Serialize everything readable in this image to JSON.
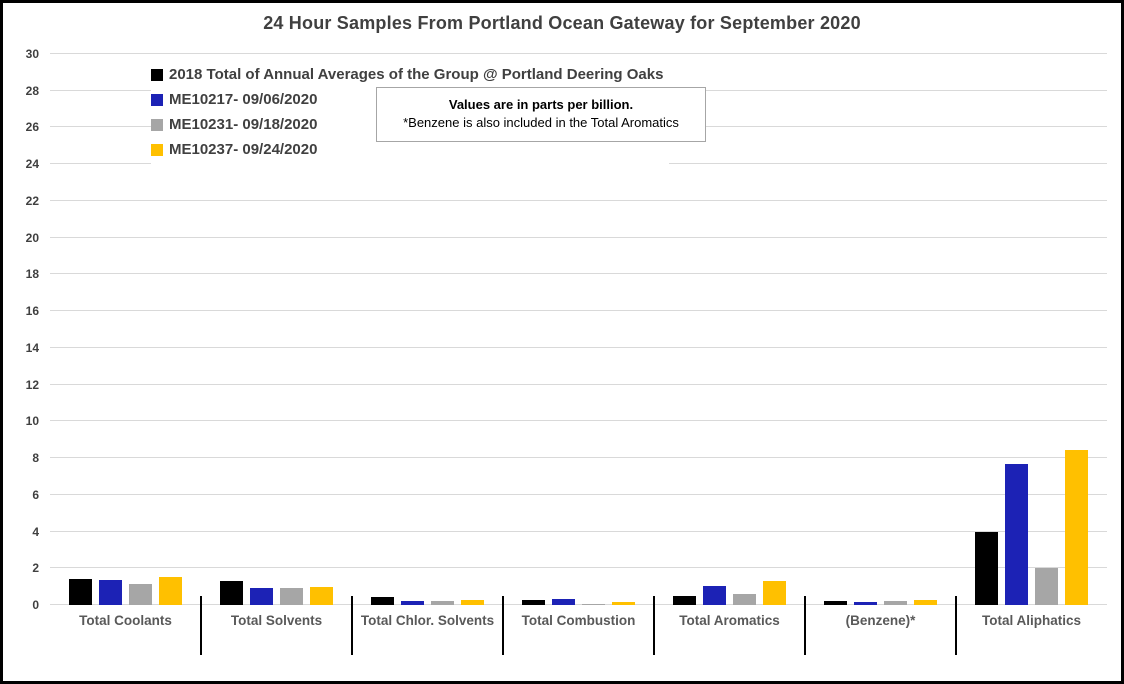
{
  "note_box": {
    "line1": "Values are in parts per billion.",
    "line2": "*Benzene is also included in the Total Aromatics"
  },
  "chart_data": {
    "type": "bar",
    "title": "24 Hour Samples From Portland Ocean Gateway for September 2020",
    "unit": "parts per billion",
    "categories": [
      "Total Coolants",
      "Total Solvents",
      "Total Chlor. Solvents",
      "Total Combustion",
      "Total Aromatics",
      "(Benzene)*",
      "Total Aliphatics"
    ],
    "series": [
      {
        "name": "2018 Total of Annual Averages of the Group @ Portland Deering Oaks",
        "color": "#000000",
        "values": [
          1.4,
          1.3,
          0.45,
          0.3,
          0.5,
          0.2,
          4.0
        ]
      },
      {
        "name": "ME10217- 09/06/2020",
        "color": "#1c22b5",
        "values": [
          1.35,
          0.95,
          0.2,
          0.35,
          1.05,
          0.15,
          7.7
        ]
      },
      {
        "name": "ME10231- 09/18/2020",
        "color": "#a6a6a6",
        "values": [
          1.15,
          0.9,
          0.2,
          0.05,
          0.6,
          0.2,
          2.0
        ]
      },
      {
        "name": "ME10237- 09/24/2020",
        "color": "#ffc000",
        "values": [
          1.5,
          1.0,
          0.3,
          0.15,
          1.3,
          0.3,
          8.45
        ]
      }
    ],
    "ylim": [
      0,
      30
    ],
    "ytick_step": 2,
    "grid": true,
    "gridline_color": "#d9d9d9",
    "separator_color": "#000000",
    "legend_position": "top-left-inside",
    "xlabel": "",
    "ylabel": ""
  }
}
